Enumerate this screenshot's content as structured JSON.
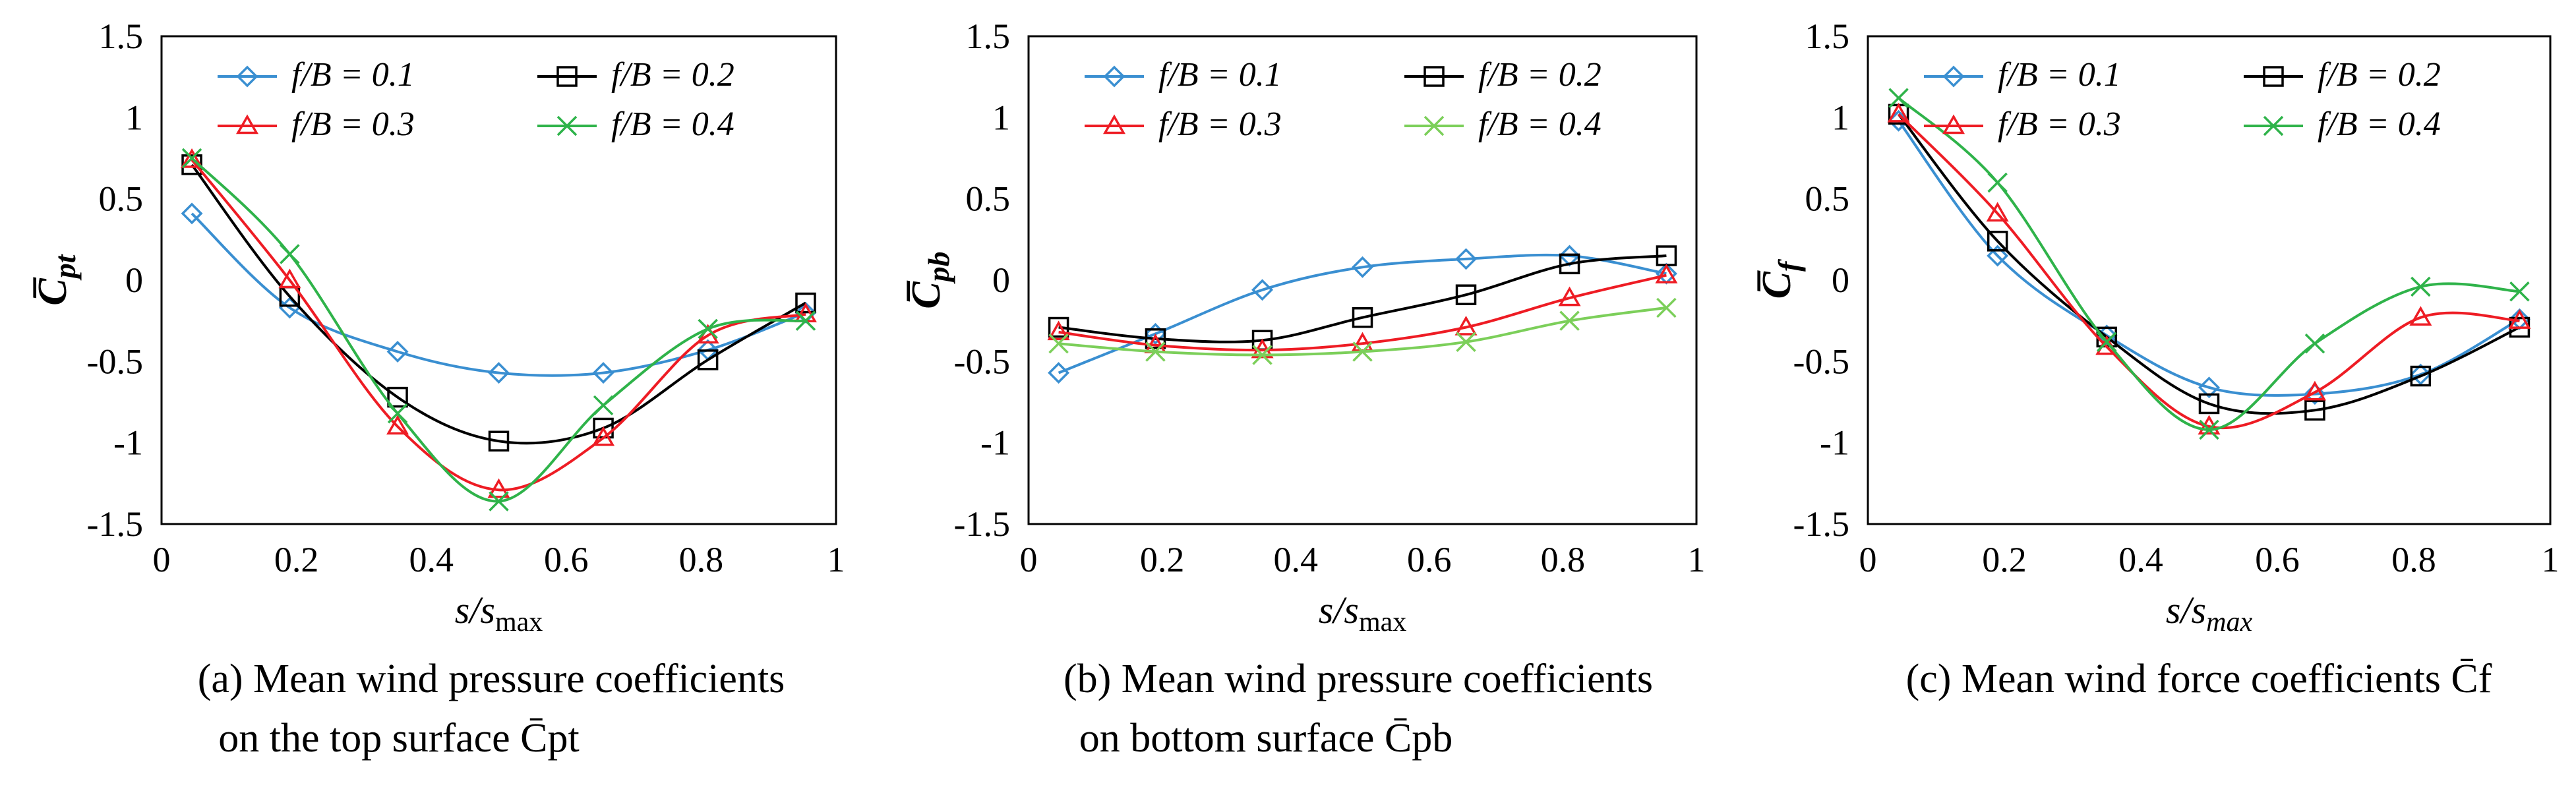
{
  "chart_data": [
    {
      "type": "line",
      "panel_caption_line1": "(a) Mean wind pressure coefficients",
      "panel_caption_line2": "on the top surface C̄pt",
      "ylabel": "C̄pt",
      "xlabel": "s/smax",
      "xlim": [
        0,
        1
      ],
      "ylim": [
        -1.5,
        1.5
      ],
      "xticks": [
        "0",
        "0.2",
        "0.4",
        "0.6",
        "0.8",
        "1"
      ],
      "yticks": [
        "1.5",
        "1",
        "0.5",
        "0",
        "-0.5",
        "-1",
        "-1.5"
      ],
      "legend": "top",
      "series": [
        {
          "name": "f/B = 0.1",
          "color": "#3a8fd1",
          "marker": "diamond",
          "x": [
            0.045,
            0.19,
            0.35,
            0.5,
            0.655,
            0.81,
            0.955
          ],
          "y": [
            0.41,
            -0.17,
            -0.44,
            -0.57,
            -0.57,
            -0.43,
            -0.2
          ]
        },
        {
          "name": "f/B = 0.2",
          "color": "#000000",
          "marker": "square",
          "x": [
            0.045,
            0.19,
            0.35,
            0.5,
            0.655,
            0.81,
            0.955
          ],
          "y": [
            0.71,
            -0.1,
            -0.72,
            -0.99,
            -0.91,
            -0.49,
            -0.14
          ]
        },
        {
          "name": "f/B = 0.3",
          "color": "#ee1c24",
          "marker": "triangle",
          "x": [
            0.045,
            0.19,
            0.35,
            0.5,
            0.655,
            0.81,
            0.955
          ],
          "y": [
            0.74,
            0.0,
            -0.9,
            -1.29,
            -0.97,
            -0.34,
            -0.21
          ]
        },
        {
          "name": "f/B = 0.4",
          "color": "#2fb34a",
          "marker": "x",
          "x": [
            0.045,
            0.19,
            0.35,
            0.5,
            0.655,
            0.81,
            0.955
          ],
          "y": [
            0.75,
            0.16,
            -0.82,
            -1.36,
            -0.77,
            -0.3,
            -0.25
          ]
        }
      ]
    },
    {
      "type": "line",
      "panel_caption_line1": "(b) Mean wind pressure coefficients",
      "panel_caption_line2": "on bottom surface C̄pb",
      "ylabel": "C̄pb",
      "xlabel": "s/smax",
      "xlim": [
        0,
        1
      ],
      "ylim": [
        -1.5,
        1.5
      ],
      "xticks": [
        "0",
        "0.2",
        "0.4",
        "0.6",
        "0.8",
        "1"
      ],
      "yticks": [
        "1.5",
        "1",
        "0.5",
        "0",
        "-0.5",
        "-1",
        "-1.5"
      ],
      "legend": "top",
      "series": [
        {
          "name": "f/B = 0.1",
          "color": "#3a8fd1",
          "marker": "diamond",
          "x": [
            0.045,
            0.19,
            0.35,
            0.5,
            0.655,
            0.81,
            0.955
          ],
          "y": [
            -0.57,
            -0.33,
            -0.06,
            0.08,
            0.13,
            0.15,
            0.04
          ]
        },
        {
          "name": "f/B = 0.2",
          "color": "#000000",
          "marker": "square",
          "x": [
            0.045,
            0.19,
            0.35,
            0.5,
            0.655,
            0.81,
            0.955
          ],
          "y": [
            -0.29,
            -0.36,
            -0.37,
            -0.23,
            -0.09,
            0.1,
            0.15
          ]
        },
        {
          "name": "f/B = 0.3",
          "color": "#ee1c24",
          "marker": "triangle",
          "x": [
            0.045,
            0.19,
            0.35,
            0.5,
            0.655,
            0.81,
            0.955
          ],
          "y": [
            -0.32,
            -0.4,
            -0.43,
            -0.39,
            -0.29,
            -0.11,
            0.03
          ]
        },
        {
          "name": "f/B = 0.4",
          "color": "#7ccf5a",
          "marker": "x",
          "x": [
            0.045,
            0.19,
            0.35,
            0.5,
            0.655,
            0.81,
            0.955
          ],
          "y": [
            -0.39,
            -0.44,
            -0.46,
            -0.44,
            -0.38,
            -0.25,
            -0.17
          ]
        }
      ]
    },
    {
      "type": "line",
      "panel_caption_line1": "(c) Mean wind force coefficients C̄f",
      "panel_caption_line2": "",
      "ylabel": "C̄f",
      "xlabel": "s/smax",
      "xlim": [
        0,
        1
      ],
      "ylim": [
        -1.5,
        1.5
      ],
      "xticks": [
        "0",
        "0.2",
        "0.4",
        "0.6",
        "0.8",
        "1"
      ],
      "yticks": [
        "1.5",
        "1",
        "0.5",
        "0",
        "-0.5",
        "-1",
        "-1.5"
      ],
      "legend": "top",
      "series": [
        {
          "name": "f/B = 0.1",
          "color": "#3a8fd1",
          "marker": "diamond",
          "x": [
            0.045,
            0.19,
            0.35,
            0.5,
            0.655,
            0.81,
            0.955
          ],
          "y": [
            0.98,
            0.15,
            -0.34,
            -0.66,
            -0.7,
            -0.58,
            -0.24
          ]
        },
        {
          "name": "f/B = 0.2",
          "color": "#000000",
          "marker": "square",
          "x": [
            0.045,
            0.19,
            0.35,
            0.5,
            0.655,
            0.81,
            0.955
          ],
          "y": [
            1.02,
            0.24,
            -0.35,
            -0.76,
            -0.8,
            -0.59,
            -0.29
          ]
        },
        {
          "name": "f/B = 0.3",
          "color": "#ee1c24",
          "marker": "triangle",
          "x": [
            0.045,
            0.19,
            0.35,
            0.5,
            0.655,
            0.81,
            0.955
          ],
          "y": [
            1.02,
            0.41,
            -0.41,
            -0.9,
            -0.69,
            -0.23,
            -0.25
          ]
        },
        {
          "name": "f/B = 0.4",
          "color": "#2fb34a",
          "marker": "x",
          "x": [
            0.045,
            0.19,
            0.35,
            0.5,
            0.655,
            0.81,
            0.955
          ],
          "y": [
            1.12,
            0.6,
            -0.38,
            -0.92,
            -0.39,
            -0.04,
            -0.07
          ]
        }
      ]
    }
  ]
}
